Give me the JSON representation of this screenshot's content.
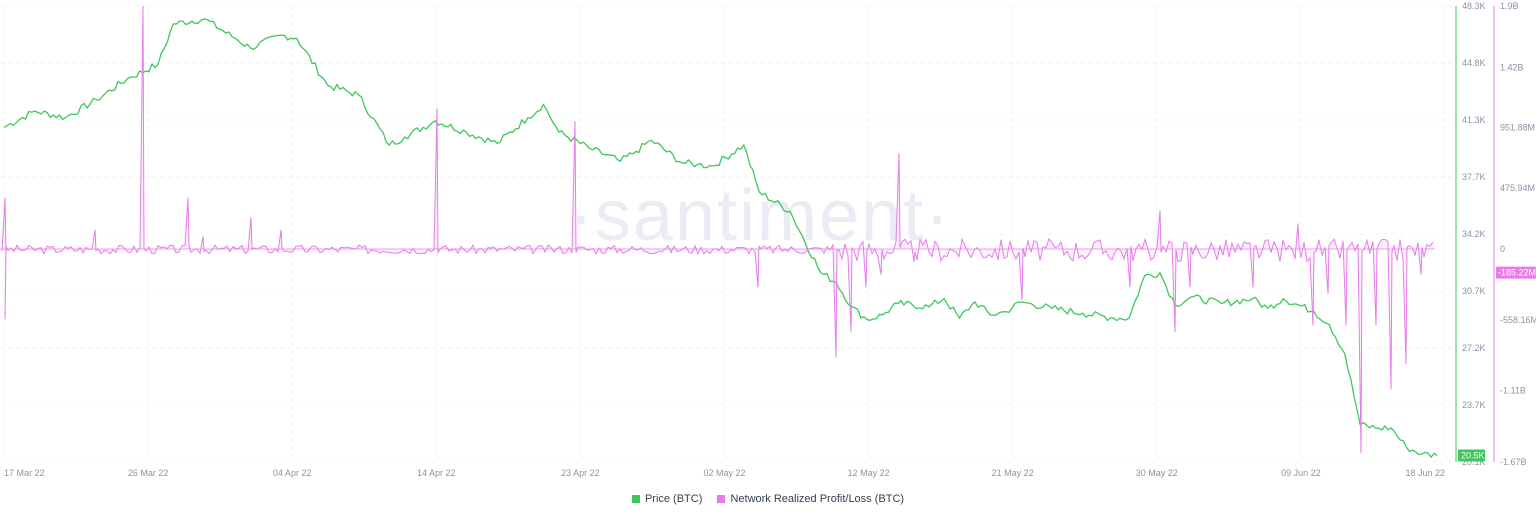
{
  "chart_data": {
    "type": "line",
    "watermark": "·santiment·",
    "x_ticks": [
      "17 Mar 22",
      "26 Mar 22",
      "04 Apr 22",
      "14 Apr 22",
      "23 Apr 22",
      "02 May 22",
      "12 May 22",
      "21 May 22",
      "30 May 22",
      "09 Jun 22",
      "18 Jun 22"
    ],
    "left_axis": {
      "ticks": [
        "48.3K",
        "44.8K",
        "41.3K",
        "37.7K",
        "34.2K",
        "30.7K",
        "27.2K",
        "23.7K",
        "20.1K"
      ],
      "ylim": [
        20100,
        48300
      ],
      "color": "#3ec75a"
    },
    "right_axis": {
      "ticks": [
        "1.9B",
        "1.42B",
        "951.88M",
        "475.94M",
        "0",
        "-558.16M",
        "-1.11B",
        "-1.67B"
      ],
      "ylim": [
        -1670000000,
        1900000000
      ],
      "color": "#e67ce8"
    },
    "current_labels": {
      "price": "20.5K",
      "pl": "-185.22M"
    },
    "legend_position": "bottom-center",
    "series": [
      {
        "name": "Price (BTC)",
        "axis": "left",
        "color": "#3ec75a",
        "keypoints": [
          [
            "2022-03-17",
            40800
          ],
          [
            "2022-03-19",
            41800
          ],
          [
            "2022-03-21",
            41400
          ],
          [
            "2022-03-23",
            42500
          ],
          [
            "2022-03-25",
            43800
          ],
          [
            "2022-03-27",
            44700
          ],
          [
            "2022-03-28",
            47200
          ],
          [
            "2022-03-30",
            47500
          ],
          [
            "2022-04-01",
            46300
          ],
          [
            "2022-04-02",
            45700
          ],
          [
            "2022-04-04",
            46500
          ],
          [
            "2022-04-05",
            46300
          ],
          [
            "2022-04-07",
            43400
          ],
          [
            "2022-04-09",
            42800
          ],
          [
            "2022-04-11",
            39700
          ],
          [
            "2022-04-12",
            40200
          ],
          [
            "2022-04-14",
            41200
          ],
          [
            "2022-04-16",
            40500
          ],
          [
            "2022-04-18",
            39800
          ],
          [
            "2022-04-20",
            41400
          ],
          [
            "2022-04-21",
            42200
          ],
          [
            "2022-04-22",
            40500
          ],
          [
            "2022-04-24",
            39500
          ],
          [
            "2022-04-26",
            38700
          ],
          [
            "2022-04-27",
            39300
          ],
          [
            "2022-04-28",
            40000
          ],
          [
            "2022-04-30",
            38600
          ],
          [
            "2022-05-01",
            38500
          ],
          [
            "2022-05-02",
            38400
          ],
          [
            "2022-05-04",
            39700
          ],
          [
            "2022-05-05",
            36800
          ],
          [
            "2022-05-07",
            35600
          ],
          [
            "2022-05-09",
            31800
          ],
          [
            "2022-05-10",
            31200
          ],
          [
            "2022-05-11",
            29700
          ],
          [
            "2022-05-12",
            28900
          ],
          [
            "2022-05-13",
            29200
          ],
          [
            "2022-05-14",
            29900
          ],
          [
            "2022-05-16",
            29700
          ],
          [
            "2022-05-17",
            30200
          ],
          [
            "2022-05-18",
            29000
          ],
          [
            "2022-05-19",
            30000
          ],
          [
            "2022-05-20",
            29200
          ],
          [
            "2022-05-21",
            29400
          ],
          [
            "2022-05-22",
            30000
          ],
          [
            "2022-05-24",
            29600
          ],
          [
            "2022-05-26",
            29300
          ],
          [
            "2022-05-28",
            29000
          ],
          [
            "2022-05-29",
            29000
          ],
          [
            "2022-05-30",
            31600
          ],
          [
            "2022-05-31",
            31800
          ],
          [
            "2022-06-01",
            29800
          ],
          [
            "2022-06-02",
            30300
          ],
          [
            "2022-06-04",
            29900
          ],
          [
            "2022-06-06",
            30200
          ],
          [
            "2022-06-07",
            29600
          ],
          [
            "2022-06-08",
            30200
          ],
          [
            "2022-06-10",
            29400
          ],
          [
            "2022-06-11",
            28600
          ],
          [
            "2022-06-12",
            26800
          ],
          [
            "2022-06-13",
            22400
          ],
          [
            "2022-06-14",
            22200
          ],
          [
            "2022-06-15",
            22200
          ],
          [
            "2022-06-16",
            21000
          ],
          [
            "2022-06-17",
            20600
          ],
          [
            "2022-06-18",
            20500
          ]
        ]
      },
      {
        "name": "Network Realized Profit/Loss (BTC)",
        "axis": "right",
        "color": "#e67ce8",
        "spikes": [
          [
            "2022-03-17",
            400000000
          ],
          [
            "2022-03-17",
            -550000000
          ],
          [
            "2022-03-23",
            150000000
          ],
          [
            "2022-03-26",
            1900000000
          ],
          [
            "2022-03-29",
            400000000
          ],
          [
            "2022-03-30",
            100000000
          ],
          [
            "2022-04-02",
            250000000
          ],
          [
            "2022-04-04",
            150000000
          ],
          [
            "2022-04-14",
            1100000000
          ],
          [
            "2022-04-23",
            1000000000
          ],
          [
            "2022-05-05",
            -300000000
          ],
          [
            "2022-05-10",
            -850000000
          ],
          [
            "2022-05-11",
            -650000000
          ],
          [
            "2022-05-12",
            -300000000
          ],
          [
            "2022-05-13",
            -200000000
          ],
          [
            "2022-05-14",
            750000000
          ],
          [
            "2022-05-15",
            -100000000
          ],
          [
            "2022-05-22",
            -400000000
          ],
          [
            "2022-05-29",
            -300000000
          ],
          [
            "2022-05-31",
            300000000
          ],
          [
            "2022-06-01",
            -650000000
          ],
          [
            "2022-06-02",
            -300000000
          ],
          [
            "2022-06-06",
            -300000000
          ],
          [
            "2022-06-09",
            200000000
          ],
          [
            "2022-06-10",
            -600000000
          ],
          [
            "2022-06-11",
            -350000000
          ],
          [
            "2022-06-12",
            -600000000
          ],
          [
            "2022-06-13",
            -1600000000
          ],
          [
            "2022-06-14",
            -600000000
          ],
          [
            "2022-06-15",
            -1100000000
          ],
          [
            "2022-06-16",
            -900000000
          ],
          [
            "2022-06-17",
            -200000000
          ],
          [
            "2022-06-18",
            -700000000
          ],
          [
            "2022-06-18",
            350000000
          ],
          [
            "2022-06-18",
            -185220000
          ]
        ]
      }
    ]
  }
}
